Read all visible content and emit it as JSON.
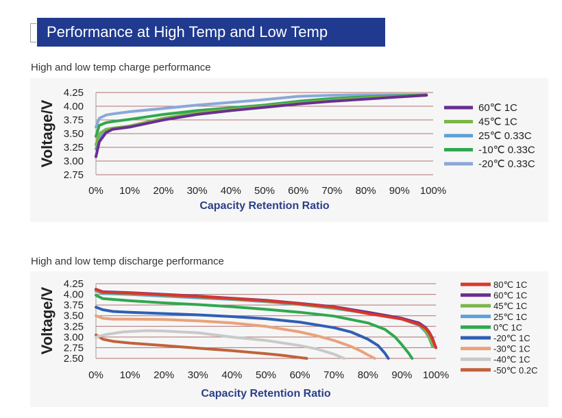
{
  "header": {
    "title": "Performance at High Temp and Low Temp"
  },
  "charts": [
    {
      "subtitle": "High and low temp charge performance",
      "chart_data": {
        "type": "line",
        "title": "",
        "xlabel": "Capacity Retention Ratio",
        "ylabel": "Voltage/V",
        "xlim": [
          0,
          100
        ],
        "ylim": [
          2.75,
          4.25
        ],
        "xticks": [
          "0%",
          "10%",
          "20%",
          "30%",
          "40%",
          "50%",
          "60%",
          "70%",
          "80%",
          "90%",
          "100%"
        ],
        "yticks": [
          "4.25",
          "4.00",
          "3.75",
          "3.50",
          "3.25",
          "3.00",
          "2.75"
        ],
        "grid": "horizontal",
        "legend_position": "right",
        "series": [
          {
            "name": "60℃ 1C",
            "color": "#6a2f8f",
            "x": [
              0,
              1,
              3,
              5,
              10,
              20,
              30,
              40,
              50,
              60,
              70,
              80,
              90,
              98
            ],
            "y": [
              3.08,
              3.35,
              3.52,
              3.58,
              3.62,
              3.75,
              3.85,
              3.92,
              3.98,
              4.04,
              4.09,
              4.13,
              4.17,
              4.2
            ]
          },
          {
            "name": "45℃ 1C",
            "color": "#7ab648",
            "x": [
              0,
              1,
              3,
              5,
              10,
              20,
              30,
              40,
              50,
              60,
              70,
              80,
              90,
              98
            ],
            "y": [
              3.3,
              3.5,
              3.58,
              3.6,
              3.64,
              3.78,
              3.88,
              3.94,
              4.0,
              4.06,
              4.11,
              4.15,
              4.18,
              4.2
            ]
          },
          {
            "name": "25℃ 0.33C",
            "color": "#5aa0d6",
            "x": [
              0,
              1,
              3,
              5,
              10,
              20,
              30,
              40,
              50,
              60,
              70,
              80,
              90,
              98
            ],
            "y": [
              3.22,
              3.42,
              3.54,
              3.58,
              3.62,
              3.78,
              3.87,
              3.93,
              3.99,
              4.05,
              4.1,
              4.14,
              4.17,
              4.2
            ]
          },
          {
            "name": "-10℃ 0.33C",
            "color": "#2fa84f",
            "x": [
              0,
              1,
              3,
              5,
              10,
              20,
              30,
              40,
              50,
              60,
              70,
              80,
              90,
              98
            ],
            "y": [
              3.45,
              3.65,
              3.7,
              3.72,
              3.76,
              3.85,
              3.92,
              3.97,
              4.02,
              4.09,
              4.14,
              4.17,
              4.19,
              4.21
            ]
          },
          {
            "name": "-20℃ 0.33C",
            "color": "#8aa8d8",
            "x": [
              0,
              1,
              3,
              5,
              10,
              20,
              30,
              40,
              50,
              60,
              70,
              80,
              90,
              98
            ],
            "y": [
              3.62,
              3.78,
              3.84,
              3.86,
              3.9,
              3.96,
              4.02,
              4.07,
              4.12,
              4.18,
              4.2,
              4.21,
              4.21,
              4.21
            ]
          }
        ]
      }
    },
    {
      "subtitle": "High and low temp discharge performance",
      "chart_data": {
        "type": "line",
        "title": "",
        "xlabel": "Capacity Retention Ratio",
        "ylabel": "Voltage/V",
        "xlim": [
          0,
          100
        ],
        "ylim": [
          2.5,
          4.25
        ],
        "xticks": [
          "0%",
          "10%",
          "20%",
          "30%",
          "40%",
          "50%",
          "60%",
          "70%",
          "80%",
          "90%",
          "100%"
        ],
        "yticks": [
          "4.25",
          "4.00",
          "3.75",
          "3.50",
          "3.25",
          "3.00",
          "2.75",
          "2.50"
        ],
        "grid": "horizontal",
        "legend_position": "right",
        "series": [
          {
            "name": "80℃ 1C",
            "color": "#d9372b",
            "x": [
              0,
              2,
              10,
              20,
              30,
              40,
              50,
              60,
              70,
              80,
              90,
              95,
              97,
              98,
              99,
              100
            ],
            "y": [
              4.12,
              4.05,
              4.03,
              3.99,
              3.95,
              3.9,
              3.85,
              3.78,
              3.7,
              3.55,
              3.42,
              3.3,
              3.2,
              3.1,
              2.95,
              2.75
            ]
          },
          {
            "name": "60℃ 1C",
            "color": "#6a2f8f",
            "x": [
              0,
              2,
              10,
              20,
              30,
              40,
              50,
              60,
              70,
              80,
              90,
              95,
              97,
              98,
              99,
              100
            ],
            "y": [
              4.12,
              4.06,
              4.04,
              4.0,
              3.96,
              3.91,
              3.86,
              3.79,
              3.71,
              3.58,
              3.44,
              3.33,
              3.22,
              3.12,
              2.97,
              2.75
            ]
          },
          {
            "name": "45℃ 1C",
            "color": "#7ab648",
            "x": [
              0,
              2,
              10,
              20,
              30,
              40,
              50,
              60,
              70,
              80,
              90,
              95,
              97,
              98,
              99
            ],
            "y": [
              4.1,
              4.04,
              4.02,
              3.98,
              3.94,
              3.89,
              3.84,
              3.77,
              3.68,
              3.57,
              3.43,
              3.3,
              3.15,
              3.0,
              2.8
            ]
          },
          {
            "name": "25℃ 1C",
            "color": "#5aa0d6",
            "x": [
              0,
              2,
              10,
              20,
              30,
              40,
              50,
              60,
              70,
              80,
              90,
              95,
              97,
              98,
              99
            ],
            "y": [
              4.08,
              4.02,
              4.0,
              3.96,
              3.92,
              3.88,
              3.83,
              3.76,
              3.67,
              3.56,
              3.42,
              3.28,
              3.12,
              2.98,
              2.78
            ]
          },
          {
            "name": "0℃ 1C",
            "color": "#2fa84f",
            "x": [
              0,
              2,
              10,
              20,
              30,
              40,
              50,
              60,
              70,
              80,
              85,
              88,
              90,
              92,
              93
            ],
            "y": [
              3.98,
              3.9,
              3.85,
              3.8,
              3.76,
              3.71,
              3.65,
              3.58,
              3.49,
              3.33,
              3.18,
              3.0,
              2.82,
              2.62,
              2.5
            ]
          },
          {
            "name": "-20℃ 1C",
            "color": "#2f5fb5",
            "x": [
              0,
              2,
              5,
              10,
              20,
              30,
              40,
              50,
              60,
              70,
              75,
              80,
              83,
              85,
              86
            ],
            "y": [
              3.7,
              3.64,
              3.6,
              3.58,
              3.55,
              3.52,
              3.48,
              3.43,
              3.35,
              3.22,
              3.12,
              2.95,
              2.8,
              2.62,
              2.5
            ]
          },
          {
            "name": "-30℃ 1C",
            "color": "#e9a27a",
            "x": [
              0,
              2,
              5,
              10,
              20,
              30,
              40,
              50,
              60,
              65,
              70,
              75,
              78,
              80,
              82
            ],
            "y": [
              3.5,
              3.44,
              3.42,
              3.42,
              3.41,
              3.38,
              3.33,
              3.25,
              3.12,
              3.03,
              2.92,
              2.78,
              2.67,
              2.58,
              2.5
            ]
          },
          {
            "name": "-40℃ 1C",
            "color": "#c9c9c9",
            "x": [
              0,
              3,
              8,
              15,
              20,
              30,
              40,
              50,
              60,
              65,
              70,
              73
            ],
            "y": [
              3.0,
              3.06,
              3.12,
              3.15,
              3.14,
              3.1,
              3.0,
              2.92,
              2.8,
              2.72,
              2.6,
              2.5
            ]
          },
          {
            "name": "-50℃ 0.2C",
            "color": "#c0623a",
            "x": [
              0,
              2,
              5,
              10,
              20,
              30,
              40,
              50,
              55,
              60,
              62
            ],
            "y": [
              3.05,
              2.95,
              2.9,
              2.86,
              2.8,
              2.74,
              2.68,
              2.61,
              2.57,
              2.52,
              2.5
            ]
          }
        ]
      }
    }
  ]
}
